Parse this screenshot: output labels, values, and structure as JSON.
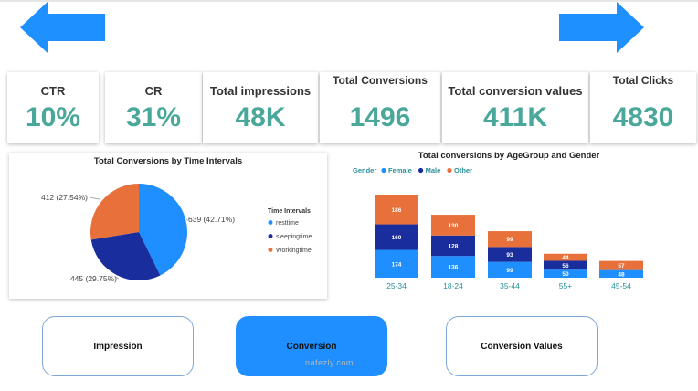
{
  "kpis": [
    {
      "label": "CTR",
      "value": "10%"
    },
    {
      "label": "CR",
      "value": "31%"
    },
    {
      "label": "Total impressions",
      "value": "48K"
    },
    {
      "label": "Total Conversions",
      "value": "1496"
    },
    {
      "label": "Total conversion values",
      "value": "411K"
    },
    {
      "label": "Total Clicks",
      "value": "4830"
    }
  ],
  "colors": {
    "accent_blue": "#1e90ff",
    "kpi_value": "#4aa89a",
    "resttime": "#1f8fff",
    "sleepingtime": "#1a2d9c",
    "workingtime": "#e8703a",
    "female": "#1f8fff",
    "male": "#1a2d9c",
    "other": "#e8703a"
  },
  "buttons": [
    {
      "label": "Impression",
      "active": false
    },
    {
      "label": "Conversion",
      "active": true
    },
    {
      "label": "Conversion Values",
      "active": false
    }
  ],
  "watermark": "nafezly.com",
  "chart_data": [
    {
      "type": "pie",
      "title": "Total Conversions by Time Intervals",
      "legend_title": "Time Intervals",
      "legend_position": "right",
      "slices": [
        {
          "name": "resttime",
          "value": 639,
          "label": "639 (42.71%)"
        },
        {
          "name": "sleepingtime",
          "value": 445,
          "label": "445 (29.75%)"
        },
        {
          "name": "Workingtime",
          "value": 412,
          "label": "412 (27.54%)"
        }
      ]
    },
    {
      "type": "bar",
      "stacked": true,
      "title": "Total conversions by AgeGroup and Gender",
      "legend_title": "Gender",
      "legend_position": "top-left",
      "categories": [
        "25-34",
        "18-24",
        "35-44",
        "55+",
        "45-54"
      ],
      "series": [
        {
          "name": "Female",
          "values": [
            174,
            136,
            99,
            50,
            48
          ]
        },
        {
          "name": "Male",
          "values": [
            160,
            128,
            93,
            56,
            null
          ]
        },
        {
          "name": "Other",
          "values": [
            186,
            130,
            99,
            44,
            57
          ]
        }
      ]
    }
  ]
}
